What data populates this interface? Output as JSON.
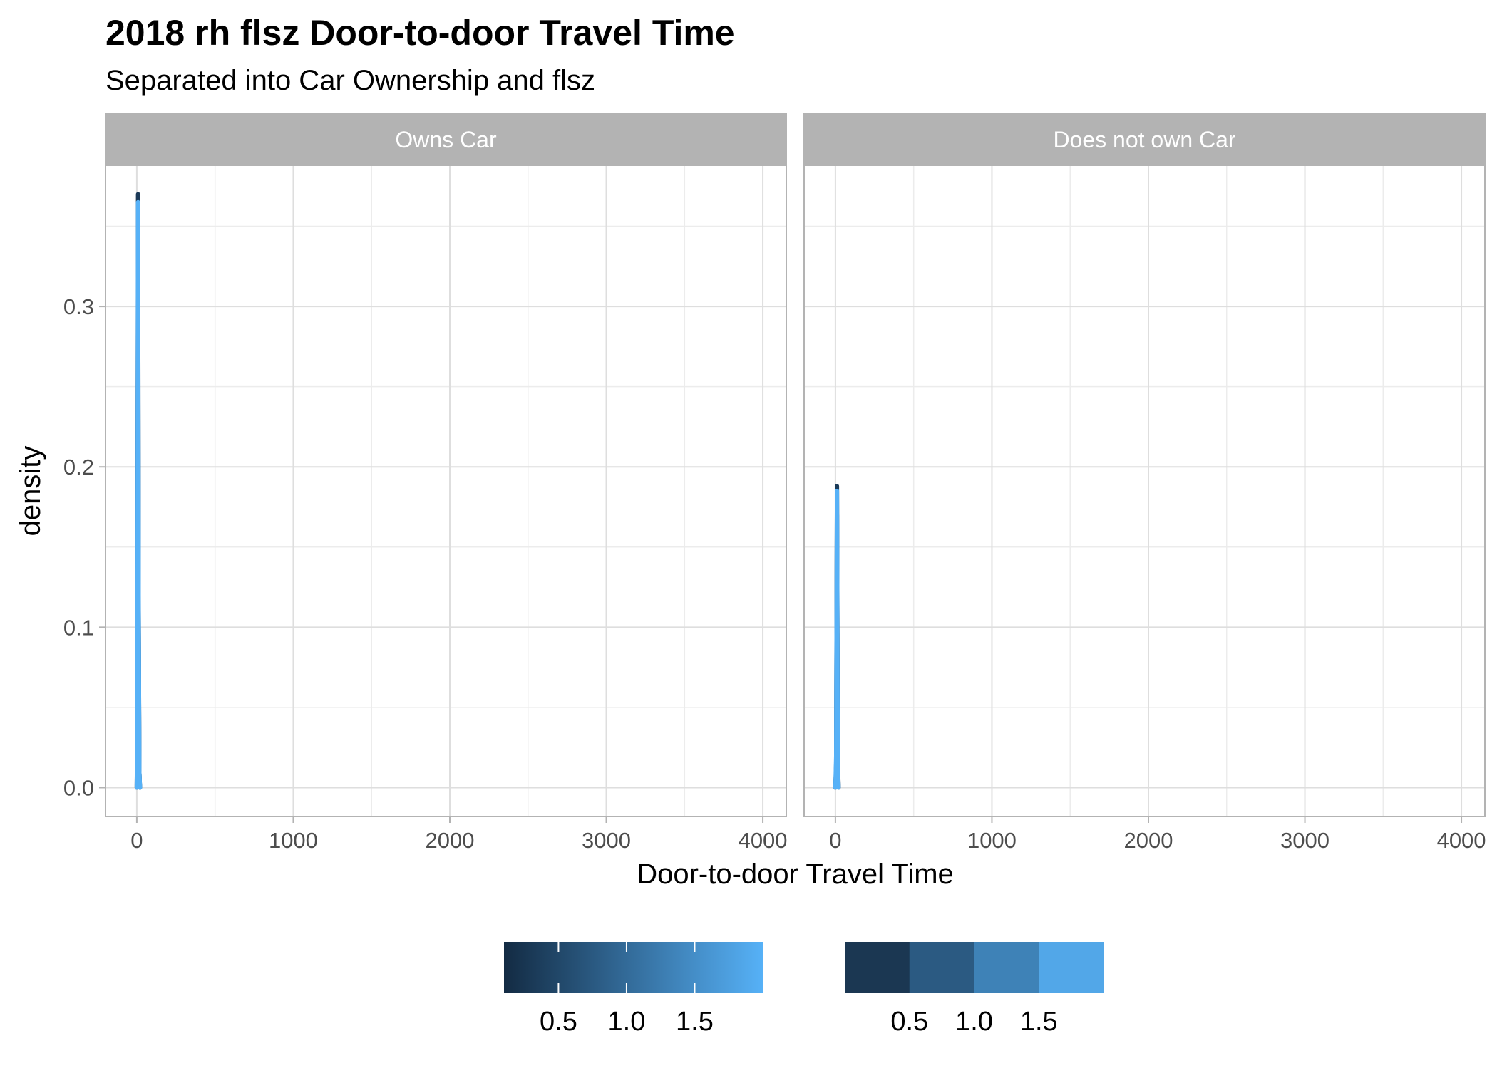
{
  "chart_data": {
    "type": "line",
    "chart_kind": "density",
    "title": "2018 rh flsz Door-to-door Travel Time",
    "subtitle": "Separated into Car Ownership and flsz",
    "xlabel": "Door-to-door Travel Time",
    "ylabel": "density",
    "xlim": [
      -200,
      4150
    ],
    "ylim": [
      -0.018,
      0.388
    ],
    "x_ticks": [
      0,
      1000,
      2000,
      3000,
      4000
    ],
    "x_tick_labels": [
      "0",
      "1000",
      "2000",
      "3000",
      "4000"
    ],
    "y_ticks": [
      0.0,
      0.1,
      0.2,
      0.3
    ],
    "y_tick_labels": [
      "0.0",
      "0.1",
      "0.2",
      "0.3"
    ],
    "x_minor_ticks": [
      500,
      1500,
      2500,
      3500
    ],
    "y_minor_ticks": [
      0.05,
      0.15,
      0.25,
      0.35
    ],
    "grid": true,
    "facets": [
      {
        "label": "Owns Car",
        "series": [
          {
            "flsz": 0.5,
            "color": "#1b3a58",
            "x": [
              0,
              4,
              8,
              12,
              16,
              20
            ],
            "y": [
              0.0,
              0.08,
              0.37,
              0.11,
              0.01,
              0.0
            ]
          },
          {
            "flsz": 1.0,
            "color": "#2c5f88",
            "x": [
              0,
              4,
              8,
              12,
              16,
              20
            ],
            "y": [
              0.0,
              0.07,
              0.33,
              0.1,
              0.01,
              0.0
            ]
          },
          {
            "flsz": 1.5,
            "color": "#3f86c3",
            "x": [
              0,
              4,
              8,
              12,
              16,
              20
            ],
            "y": [
              0.0,
              0.06,
              0.3,
              0.09,
              0.01,
              0.0
            ]
          },
          {
            "flsz": 2.0,
            "color": "#56b1f7",
            "x": [
              0,
              4,
              8,
              12,
              16,
              20
            ],
            "y": [
              0.0,
              0.05,
              0.365,
              0.11,
              0.01,
              0.0
            ]
          }
        ]
      },
      {
        "label": "Does not own Car",
        "series": [
          {
            "flsz": 0.5,
            "color": "#1b3a58",
            "x": [
              0,
              5,
              10,
              15,
              20
            ],
            "y": [
              0.0,
              0.013,
              0.188,
              0.02,
              0.0
            ]
          },
          {
            "flsz": 1.0,
            "color": "#2c5f88",
            "x": [
              0,
              5,
              10,
              15,
              20
            ],
            "y": [
              0.0,
              0.015,
              0.17,
              0.018,
              0.0
            ]
          },
          {
            "flsz": 2.0,
            "color": "#56b1f7",
            "x": [
              0,
              5,
              10,
              15,
              20
            ],
            "y": [
              0.0,
              0.02,
              0.185,
              0.015,
              0.0
            ]
          }
        ]
      }
    ],
    "legends": [
      {
        "type": "colorbar",
        "breaks": [
          0.5,
          1.0,
          1.5
        ],
        "break_labels": [
          "0.5",
          "1.0",
          "1.5"
        ],
        "range": [
          0.1,
          2.0
        ],
        "low_color": "#132b43",
        "high_color": "#56b1f7"
      },
      {
        "type": "colorsteps",
        "breaks": [
          0.5,
          1.0,
          1.5
        ],
        "break_labels": [
          "0.5",
          "1.0",
          "1.5"
        ],
        "colors": [
          "#1b3752",
          "#2b5a82",
          "#3e82b7",
          "#52a7e8"
        ]
      }
    ],
    "legend_position": "bottom"
  }
}
